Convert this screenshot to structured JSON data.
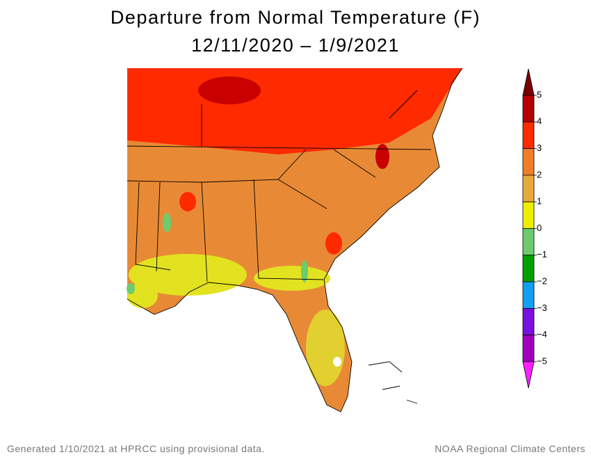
{
  "title": [
    "Departure from Normal Temperature (F)",
    "12/11/2020 – 1/9/2021"
  ],
  "colorbar": {
    "labels": [
      "5",
      "4",
      "3",
      "2",
      "1",
      "0",
      "−1",
      "−2",
      "−3",
      "−4",
      "−5"
    ],
    "colors": [
      "#7a0000",
      "#b40000",
      "#ff2a00",
      "#f07d28",
      "#e8a93a",
      "#eeee00",
      "#6ccc6c",
      "#00a000",
      "#10a0f0",
      "#7a10e0",
      "#a000c0",
      "#ff20ff"
    ]
  },
  "footer": {
    "left": "Generated 1/10/2021 at HPRCC using provisional data.",
    "right": "NOAA Regional Climate Centers"
  }
}
